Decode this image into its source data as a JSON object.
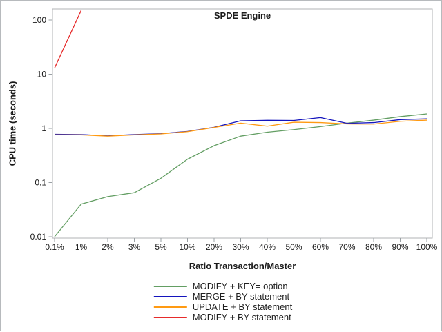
{
  "chart_data": {
    "type": "line",
    "title": "SPDE Engine",
    "xlabel": "Ratio Transaction/Master",
    "ylabel": "CPU time (seconds)",
    "x_categories": [
      "0.1%",
      "1%",
      "2%",
      "3%",
      "5%",
      "10%",
      "20%",
      "30%",
      "40%",
      "50%",
      "60%",
      "70%",
      "80%",
      "90%",
      "100%"
    ],
    "x_axis_type": "discrete-equal-spacing",
    "y_axis_type": "log10",
    "y_ticks": [
      {
        "label": "100",
        "value": 100
      },
      {
        "label": "10",
        "value": 10
      },
      {
        "label": "1",
        "value": 1
      },
      {
        "label": "0.1",
        "value": 0.1
      },
      {
        "label": "0.01",
        "value": 0.01
      }
    ],
    "ylim": [
      0.0085,
      160
    ],
    "grid": false,
    "legend_position": "bottom-center",
    "series": [
      {
        "name": "MODIFY + KEY= option",
        "color": "#639e63",
        "values": [
          0.01,
          0.04,
          0.055,
          0.065,
          0.12,
          0.27,
          0.48,
          0.72,
          0.85,
          0.95,
          1.08,
          1.25,
          1.42,
          1.65,
          1.85
        ]
      },
      {
        "name": "MERGE + BY statement",
        "color": "#1414bd",
        "values": [
          0.78,
          0.77,
          0.73,
          0.77,
          0.8,
          0.88,
          1.05,
          1.38,
          1.41,
          1.4,
          1.58,
          1.24,
          1.28,
          1.45,
          1.5
        ]
      },
      {
        "name": "UPDATE + BY statement",
        "color": "#ff9a12",
        "values": [
          0.76,
          0.76,
          0.72,
          0.76,
          0.79,
          0.87,
          1.04,
          1.25,
          1.1,
          1.3,
          1.28,
          1.21,
          1.2,
          1.35,
          1.42
        ]
      },
      {
        "name": "MODIFY + BY statement",
        "color": "#e62b2b",
        "values": [
          13,
          150,
          null,
          null,
          null,
          null,
          null,
          null,
          null,
          null,
          null,
          null,
          null,
          null,
          null
        ]
      }
    ],
    "axis_color": "#b0b3b6",
    "tick_color": "#9aa0a4",
    "text_color": "#1a1a1a"
  }
}
